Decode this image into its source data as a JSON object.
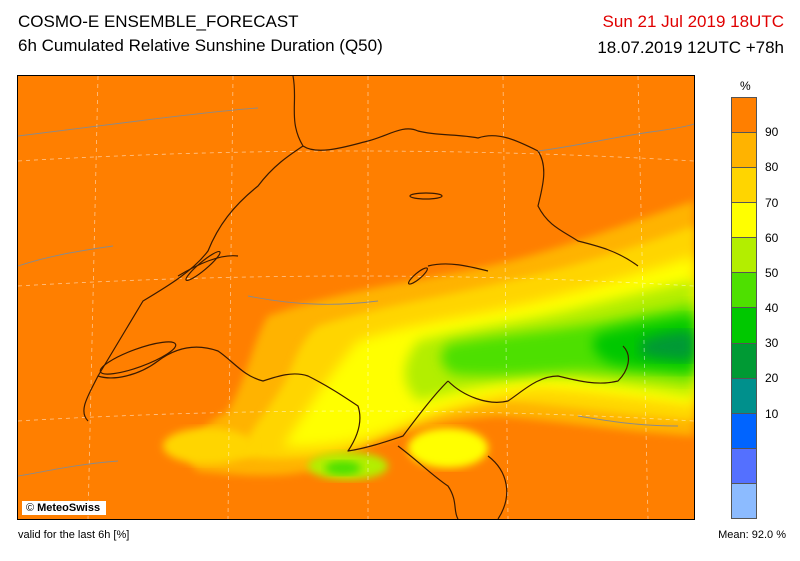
{
  "header": {
    "title": "COSMO-E ENSEMBLE_FORECAST",
    "subtitle": "6h Cumulated Relative Sunshine Duration (Q50)",
    "valid_time": "Sun 21 Jul 2019 18UTC",
    "run_time": "18.07.2019 12UTC +78h"
  },
  "map": {
    "credit_symbol": "©",
    "credit": "MeteoSwiss",
    "background_color": "#ff7f00"
  },
  "legend": {
    "unit": "%",
    "ticks": [
      "90",
      "80",
      "70",
      "60",
      "50",
      "40",
      "30",
      "20",
      "10"
    ],
    "colors": [
      "#ff7f00",
      "#ffb300",
      "#ffd500",
      "#ffff00",
      "#b3ee00",
      "#4ee000",
      "#00c800",
      "#009a34",
      "#00908c",
      "#0064ff",
      "#5470ff",
      "#8cbbff"
    ]
  },
  "footer": {
    "note": "valid for the last 6h [%]",
    "mean": "Mean:  92.0 %"
  }
}
